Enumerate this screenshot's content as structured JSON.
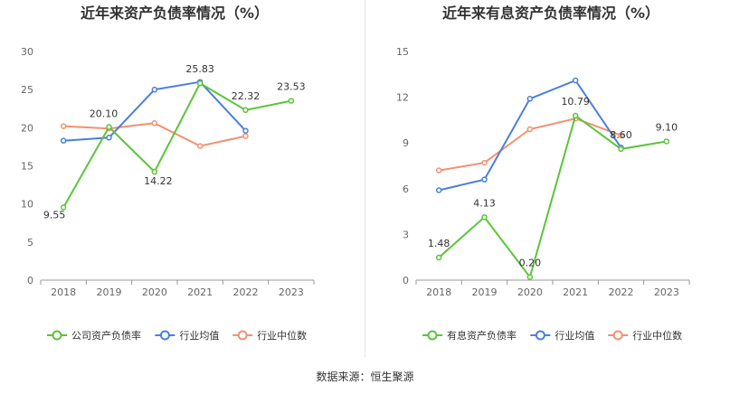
{
  "source_text": "数据来源：恒生聚源",
  "chart_data": [
    {
      "type": "line",
      "title": "近年来资产负债率情况（%）",
      "categories": [
        "2018",
        "2019",
        "2020",
        "2021",
        "2022",
        "2023"
      ],
      "ylim": [
        0,
        30
      ],
      "yticks": [
        "0",
        "5",
        "10",
        "15",
        "20",
        "25",
        "30"
      ],
      "grid": false,
      "legend": "bottom",
      "series": [
        {
          "name": "公司资产负债率",
          "color": "#5cc43a",
          "labeled": true,
          "values": [
            9.55,
            20.1,
            14.22,
            25.83,
            22.32,
            23.53
          ],
          "labels": [
            "9.55",
            "20.10",
            "14.22",
            "25.83",
            "22.32",
            "23.53"
          ]
        },
        {
          "name": "行业均值",
          "color": "#4a7fdc",
          "labeled": false,
          "values": [
            18.3,
            18.7,
            25.0,
            26.0,
            19.6,
            null
          ]
        },
        {
          "name": "行业中位数",
          "color": "#f29170",
          "labeled": false,
          "values": [
            20.2,
            19.9,
            20.6,
            17.6,
            18.9,
            null
          ]
        }
      ]
    },
    {
      "type": "line",
      "title": "近年来有息资产负债率情况（%）",
      "categories": [
        "2018",
        "2019",
        "2020",
        "2021",
        "2022",
        "2023"
      ],
      "ylim": [
        0,
        15
      ],
      "yticks": [
        "0",
        "3",
        "6",
        "9",
        "12",
        "15"
      ],
      "grid": false,
      "legend": "bottom",
      "series": [
        {
          "name": "有息资产负债率",
          "color": "#5cc43a",
          "labeled": true,
          "values": [
            1.48,
            4.13,
            0.2,
            10.79,
            8.6,
            9.1
          ],
          "labels": [
            "1.48",
            "4.13",
            "0.20",
            "10.79",
            "8.60",
            "9.10"
          ]
        },
        {
          "name": "行业均值",
          "color": "#4a7fdc",
          "labeled": false,
          "values": [
            5.9,
            6.6,
            11.9,
            13.1,
            8.7,
            null
          ]
        },
        {
          "name": "行业中位数",
          "color": "#f29170",
          "labeled": false,
          "values": [
            7.2,
            7.7,
            9.9,
            10.6,
            9.5,
            null
          ]
        }
      ]
    }
  ]
}
